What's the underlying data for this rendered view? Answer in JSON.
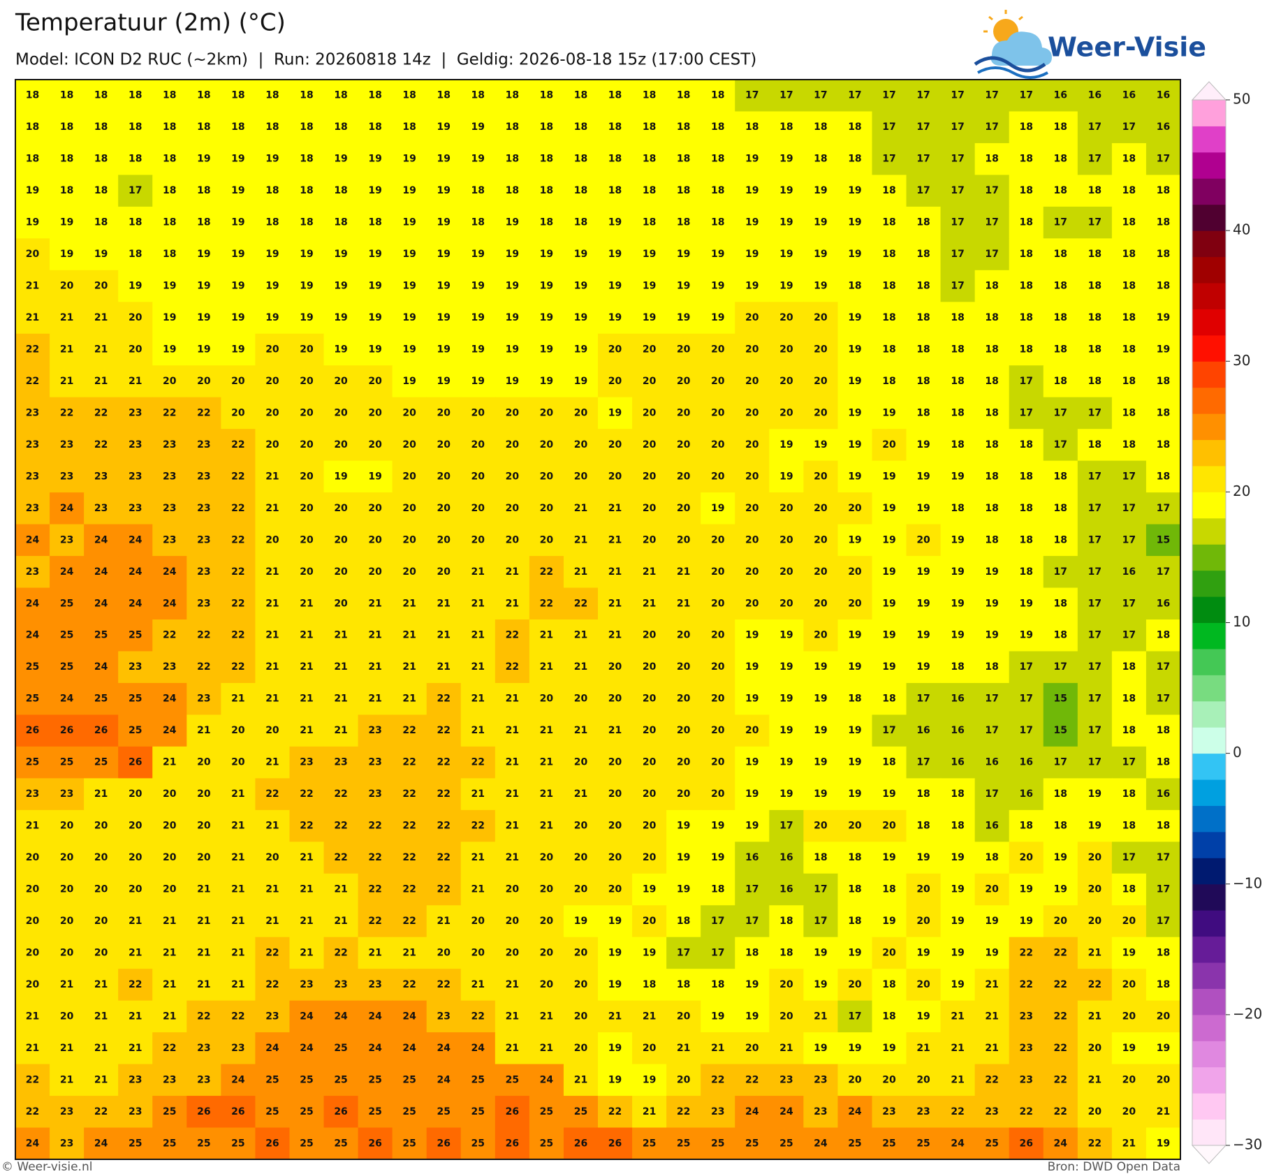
{
  "header": {
    "logo": "Weer-Visie"
  },
  "footer": {
    "credit": "© Weer-visie.nl",
    "source": "Bron: DWD Open Data"
  },
  "chart_data": {
    "type": "heatmap",
    "title": "Temperatuur (2m) (°C)",
    "subtitle": "Model: ICON D2 RUC (~2km)  |  Run: 20260818 14z  |  Geldig: 2026-08-18 15z (17:00 CEST)",
    "values": [
      [
        18,
        18,
        18,
        18,
        18,
        18,
        18,
        18,
        18,
        18,
        18,
        18,
        18,
        18,
        18,
        18,
        18,
        18,
        18,
        18,
        18,
        17,
        17,
        17,
        17,
        17,
        17,
        17,
        17,
        17,
        16,
        16,
        16,
        16
      ],
      [
        18,
        18,
        18,
        18,
        18,
        18,
        18,
        18,
        18,
        18,
        18,
        18,
        19,
        19,
        18,
        18,
        18,
        18,
        18,
        18,
        18,
        18,
        18,
        18,
        18,
        17,
        17,
        17,
        17,
        18,
        18,
        17,
        17,
        16
      ],
      [
        18,
        18,
        18,
        18,
        18,
        19,
        19,
        19,
        18,
        19,
        19,
        19,
        19,
        19,
        18,
        18,
        18,
        18,
        18,
        18,
        18,
        19,
        19,
        18,
        18,
        17,
        17,
        17,
        18,
        18,
        18,
        17,
        18,
        17
      ],
      [
        19,
        18,
        18,
        17,
        18,
        18,
        19,
        18,
        18,
        18,
        19,
        19,
        19,
        18,
        18,
        18,
        18,
        18,
        18,
        18,
        18,
        19,
        19,
        19,
        19,
        18,
        17,
        17,
        17,
        18,
        18,
        18,
        18,
        18
      ],
      [
        19,
        19,
        18,
        18,
        18,
        18,
        19,
        18,
        18,
        18,
        18,
        19,
        19,
        18,
        19,
        18,
        18,
        19,
        18,
        18,
        18,
        19,
        19,
        19,
        19,
        18,
        18,
        17,
        17,
        18,
        17,
        17,
        18,
        18
      ],
      [
        20,
        19,
        19,
        18,
        18,
        19,
        19,
        19,
        19,
        19,
        19,
        19,
        19,
        19,
        19,
        19,
        19,
        19,
        19,
        19,
        19,
        19,
        19,
        19,
        19,
        18,
        18,
        17,
        17,
        18,
        18,
        18,
        18,
        18
      ],
      [
        21,
        20,
        20,
        19,
        19,
        19,
        19,
        19,
        19,
        19,
        19,
        19,
        19,
        19,
        19,
        19,
        19,
        19,
        19,
        19,
        19,
        19,
        19,
        19,
        18,
        18,
        18,
        17,
        18,
        18,
        18,
        18,
        18,
        18
      ],
      [
        21,
        21,
        21,
        20,
        19,
        19,
        19,
        19,
        19,
        19,
        19,
        19,
        19,
        19,
        19,
        19,
        19,
        19,
        19,
        19,
        19,
        20,
        20,
        20,
        19,
        18,
        18,
        18,
        18,
        18,
        18,
        18,
        18,
        19
      ],
      [
        22,
        21,
        21,
        20,
        19,
        19,
        19,
        20,
        20,
        19,
        19,
        19,
        19,
        19,
        19,
        19,
        19,
        20,
        20,
        20,
        20,
        20,
        20,
        20,
        19,
        18,
        18,
        18,
        18,
        18,
        18,
        18,
        18,
        19
      ],
      [
        22,
        21,
        21,
        21,
        20,
        20,
        20,
        20,
        20,
        20,
        20,
        19,
        19,
        19,
        19,
        19,
        19,
        20,
        20,
        20,
        20,
        20,
        20,
        20,
        19,
        18,
        18,
        18,
        18,
        17,
        18,
        18,
        18,
        18
      ],
      [
        23,
        22,
        22,
        23,
        22,
        22,
        20,
        20,
        20,
        20,
        20,
        20,
        20,
        20,
        20,
        20,
        20,
        19,
        20,
        20,
        20,
        20,
        20,
        20,
        19,
        19,
        18,
        18,
        18,
        17,
        17,
        17,
        18,
        18
      ],
      [
        23,
        23,
        22,
        23,
        23,
        23,
        22,
        20,
        20,
        20,
        20,
        20,
        20,
        20,
        20,
        20,
        20,
        20,
        20,
        20,
        20,
        20,
        19,
        19,
        19,
        20,
        19,
        18,
        18,
        18,
        17,
        18,
        18,
        18
      ],
      [
        23,
        23,
        23,
        23,
        23,
        23,
        22,
        21,
        20,
        19,
        19,
        20,
        20,
        20,
        20,
        20,
        20,
        20,
        20,
        20,
        20,
        20,
        19,
        20,
        19,
        19,
        19,
        19,
        18,
        18,
        18,
        17,
        17,
        18
      ],
      [
        23,
        24,
        23,
        23,
        23,
        23,
        22,
        21,
        20,
        20,
        20,
        20,
        20,
        20,
        20,
        20,
        21,
        21,
        20,
        20,
        19,
        20,
        20,
        20,
        20,
        19,
        19,
        18,
        18,
        18,
        18,
        17,
        17,
        17
      ],
      [
        24,
        23,
        24,
        24,
        23,
        23,
        22,
        20,
        20,
        20,
        20,
        20,
        20,
        20,
        20,
        20,
        21,
        21,
        20,
        20,
        20,
        20,
        20,
        20,
        19,
        19,
        20,
        19,
        18,
        18,
        18,
        17,
        17,
        15
      ],
      [
        23,
        24,
        24,
        24,
        24,
        23,
        22,
        21,
        20,
        20,
        20,
        20,
        20,
        21,
        21,
        22,
        21,
        21,
        21,
        21,
        20,
        20,
        20,
        20,
        20,
        19,
        19,
        19,
        19,
        18,
        17,
        17,
        16,
        17
      ],
      [
        24,
        25,
        24,
        24,
        24,
        23,
        22,
        21,
        21,
        20,
        21,
        21,
        21,
        21,
        21,
        22,
        22,
        21,
        21,
        21,
        20,
        20,
        20,
        20,
        20,
        19,
        19,
        19,
        19,
        19,
        18,
        17,
        17,
        16
      ],
      [
        24,
        25,
        25,
        25,
        22,
        22,
        22,
        21,
        21,
        21,
        21,
        21,
        21,
        21,
        22,
        21,
        21,
        21,
        20,
        20,
        20,
        19,
        19,
        20,
        19,
        19,
        19,
        19,
        19,
        19,
        18,
        17,
        17,
        18
      ],
      [
        25,
        25,
        24,
        23,
        23,
        22,
        22,
        21,
        21,
        21,
        21,
        21,
        21,
        21,
        22,
        21,
        21,
        20,
        20,
        20,
        20,
        19,
        19,
        19,
        19,
        19,
        19,
        18,
        18,
        17,
        17,
        17,
        18,
        17
      ],
      [
        25,
        24,
        25,
        25,
        24,
        23,
        21,
        21,
        21,
        21,
        21,
        21,
        22,
        21,
        21,
        20,
        20,
        20,
        20,
        20,
        20,
        19,
        19,
        19,
        18,
        18,
        17,
        16,
        17,
        17,
        15,
        17,
        18,
        17
      ],
      [
        26,
        26,
        26,
        25,
        24,
        21,
        20,
        20,
        21,
        21,
        23,
        22,
        22,
        21,
        21,
        21,
        21,
        21,
        20,
        20,
        20,
        20,
        19,
        19,
        19,
        17,
        16,
        16,
        17,
        17,
        15,
        17,
        18,
        18
      ],
      [
        25,
        25,
        25,
        26,
        21,
        20,
        20,
        21,
        23,
        23,
        23,
        22,
        22,
        22,
        21,
        21,
        20,
        20,
        20,
        20,
        20,
        19,
        19,
        19,
        19,
        18,
        17,
        16,
        16,
        16,
        17,
        17,
        17,
        18
      ],
      [
        23,
        23,
        21,
        20,
        20,
        20,
        21,
        22,
        22,
        22,
        23,
        22,
        22,
        21,
        21,
        21,
        21,
        20,
        20,
        20,
        20,
        19,
        19,
        19,
        19,
        19,
        18,
        18,
        17,
        16,
        18,
        19,
        18,
        16
      ],
      [
        21,
        20,
        20,
        20,
        20,
        20,
        21,
        21,
        22,
        22,
        22,
        22,
        22,
        22,
        21,
        21,
        20,
        20,
        20,
        19,
        19,
        19,
        17,
        20,
        20,
        20,
        18,
        18,
        16,
        18,
        18,
        19,
        18,
        18
      ],
      [
        20,
        20,
        20,
        20,
        20,
        20,
        21,
        20,
        21,
        22,
        22,
        22,
        22,
        21,
        21,
        20,
        20,
        20,
        20,
        19,
        19,
        16,
        16,
        18,
        18,
        19,
        19,
        19,
        18,
        20,
        19,
        20,
        17,
        17
      ],
      [
        20,
        20,
        20,
        20,
        20,
        21,
        21,
        21,
        21,
        21,
        22,
        22,
        22,
        21,
        20,
        20,
        20,
        20,
        19,
        19,
        18,
        17,
        16,
        17,
        18,
        18,
        20,
        19,
        20,
        19,
        19,
        20,
        18,
        17
      ],
      [
        20,
        20,
        20,
        21,
        21,
        21,
        21,
        21,
        21,
        21,
        22,
        22,
        21,
        20,
        20,
        20,
        19,
        19,
        20,
        18,
        17,
        17,
        18,
        17,
        18,
        19,
        20,
        19,
        19,
        19,
        20,
        20,
        20,
        17
      ],
      [
        20,
        20,
        20,
        21,
        21,
        21,
        21,
        22,
        21,
        22,
        21,
        21,
        20,
        20,
        20,
        20,
        20,
        19,
        19,
        17,
        17,
        18,
        18,
        19,
        19,
        20,
        19,
        19,
        19,
        22,
        22,
        21,
        19,
        18
      ],
      [
        20,
        21,
        21,
        22,
        21,
        21,
        21,
        22,
        23,
        23,
        23,
        22,
        22,
        21,
        21,
        20,
        20,
        19,
        18,
        18,
        18,
        19,
        20,
        19,
        20,
        18,
        20,
        19,
        21,
        22,
        22,
        22,
        20,
        18
      ],
      [
        21,
        20,
        21,
        21,
        21,
        22,
        22,
        23,
        24,
        24,
        24,
        24,
        23,
        22,
        21,
        21,
        20,
        21,
        21,
        20,
        19,
        19,
        20,
        21,
        17,
        18,
        19,
        21,
        21,
        23,
        22,
        21,
        20,
        20
      ],
      [
        21,
        21,
        21,
        21,
        22,
        23,
        23,
        24,
        24,
        25,
        24,
        24,
        24,
        24,
        21,
        21,
        20,
        19,
        20,
        21,
        21,
        20,
        21,
        19,
        19,
        19,
        21,
        21,
        21,
        23,
        22,
        20,
        19,
        19
      ],
      [
        22,
        21,
        21,
        23,
        23,
        23,
        24,
        25,
        25,
        25,
        25,
        25,
        24,
        25,
        25,
        24,
        21,
        19,
        19,
        20,
        22,
        22,
        23,
        23,
        20,
        20,
        20,
        21,
        22,
        23,
        22,
        21,
        20,
        20
      ],
      [
        22,
        23,
        22,
        23,
        25,
        26,
        26,
        25,
        25,
        26,
        25,
        25,
        25,
        25,
        26,
        25,
        25,
        22,
        21,
        22,
        23,
        24,
        24,
        23,
        24,
        23,
        23,
        22,
        23,
        22,
        22,
        20,
        20,
        21
      ],
      [
        24,
        23,
        24,
        25,
        25,
        25,
        25,
        26,
        25,
        25,
        26,
        25,
        26,
        25,
        26,
        25,
        26,
        26,
        25,
        25,
        25,
        25,
        25,
        24,
        25,
        25,
        25,
        24,
        25,
        26,
        24,
        22,
        21,
        19
      ]
    ],
    "colorbar": {
      "clim": [
        -30,
        50
      ],
      "ticks": [
        50,
        40,
        30,
        20,
        10,
        0,
        {
          "value": -10,
          "label": "−10"
        },
        {
          "value": -20,
          "label": "−20"
        },
        {
          "value": -30,
          "label": "−30"
        }
      ],
      "colors": [
        "#ffe6f8",
        "#ffc8f2",
        "#f0a4ea",
        "#e088e0",
        "#cc6ad0",
        "#b050c0",
        "#8a34ac",
        "#661c98",
        "#400c80",
        "#200a58",
        "#001a70",
        "#0040a8",
        "#0070c8",
        "#00a0e0",
        "#33c4f4",
        "#ccffe8",
        "#a8f0b8",
        "#78dc80",
        "#44c855",
        "#00b820",
        "#008c10",
        "#30a010",
        "#70b808",
        "#c8d800",
        "#ffff00",
        "#ffe600",
        "#ffc000",
        "#ff9000",
        "#ff6a00",
        "#ff4400",
        "#ff1000",
        "#e00000",
        "#c00000",
        "#a00000",
        "#800010",
        "#500030",
        "#800060",
        "#b00090",
        "#e040c8",
        "#ffa0dc"
      ]
    }
  }
}
